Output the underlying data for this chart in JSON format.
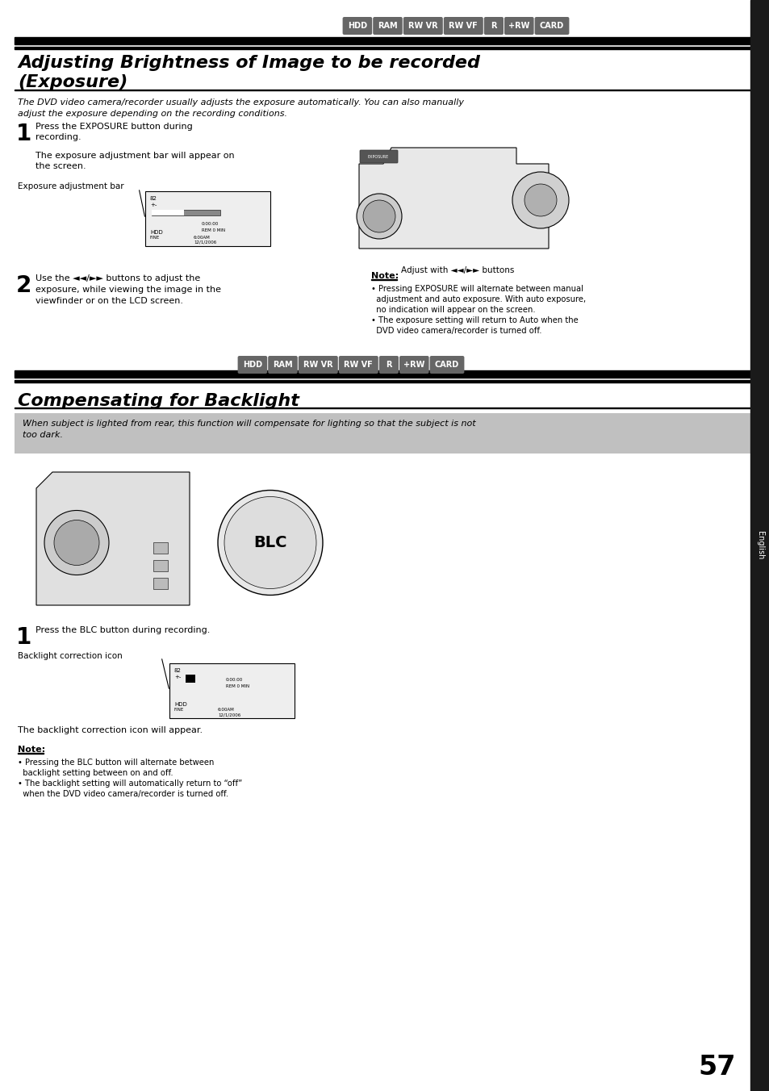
{
  "page_num": "57",
  "bg_color": "#ffffff",
  "sidebar_color": "#1a1a1a",
  "title1_line1": "Adjusting Brightness of Image to be recorded",
  "title1_line2": "(Exposure)",
  "subtitle1_line1": "The DVD video camera/recorder usually adjusts the exposure automatically. You can also manually",
  "subtitle1_line2": "adjust the exposure depending on the recording conditions.",
  "step1_line1": "Press the EXPOSURE button during",
  "step1_line2": "recording.",
  "step1_line3": "The exposure adjustment bar will appear on",
  "step1_line4": "the screen.",
  "exposure_bar_label": "Exposure adjustment bar",
  "adjust_text": "Adjust with ◄◄/►► buttons",
  "step2_line1": "Use the ◄◄/►► buttons to adjust the",
  "step2_line2": "exposure, while viewing the image in the",
  "step2_line3": "viewfinder or on the LCD screen.",
  "note1_title": "Note:",
  "note1_b1_l1": "• Pressing EXPOSURE will alternate between manual",
  "note1_b1_l2": "  adjustment and auto exposure. With auto exposure,",
  "note1_b1_l3": "  no indication will appear on the screen.",
  "note1_b2_l1": "• The exposure setting will return to Auto when the",
  "note1_b2_l2": "  DVD video camera/recorder is turned off.",
  "tags": [
    "HDD",
    "RAM",
    "RW VR",
    "RW VF",
    "R",
    "+RW",
    "CARD"
  ],
  "tag_color": "#666666",
  "tag_text_color": "#ffffff",
  "header_bar_color": "#000000",
  "intro_box_color": "#c0c0c0",
  "title2": "Compensating for Backlight",
  "intro2_line1": "When subject is lighted from rear, this function will compensate for lighting so that the subject is not",
  "intro2_line2": "too dark.",
  "step1b": "Press the BLC button during recording.",
  "backlight_label": "Backlight correction icon",
  "backlight_appear": "The backlight correction icon will appear.",
  "note2_title": "Note:",
  "note2_b1_l1": "• Pressing the BLC button will alternate between",
  "note2_b1_l2": "  backlight setting between on and off.",
  "note2_b2_l1": "• The backlight setting will automatically return to “off”",
  "note2_b2_l2": "  when the DVD video camera/recorder is turned off.",
  "sidebar_label": "English"
}
